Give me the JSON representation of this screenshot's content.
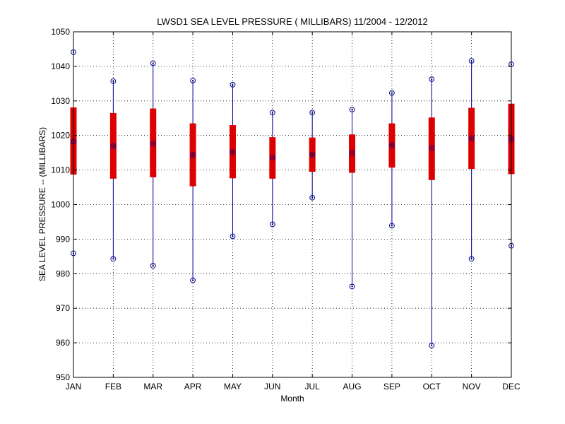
{
  "chart_data": {
    "type": "box",
    "title": "LWSD1  SEA LEVEL PRESSURE ( MILLIBARS) 11/2004 - 12/2012",
    "xlabel": "Month",
    "ylabel": "SEA LEVEL PRESSURE -- (MILLIBARS)",
    "ylim": [
      950,
      1050
    ],
    "yticks": [
      950,
      960,
      970,
      980,
      990,
      1000,
      1010,
      1020,
      1030,
      1040,
      1050
    ],
    "grid": true,
    "categories": [
      "JAN",
      "FEB",
      "MAR",
      "APR",
      "MAY",
      "JUN",
      "JUL",
      "AUG",
      "SEP",
      "OCT",
      "NOV",
      "DEC"
    ],
    "series": [
      {
        "max": [
          1044.1,
          1035.7,
          1040.9,
          1035.9,
          1034.7,
          1026.6,
          1026.6,
          1027.5,
          1032.3,
          1036.3,
          1041.6,
          1040.6
        ],
        "q3": [
          1028.1,
          1026.5,
          1027.8,
          1023.5,
          1023.0,
          1019.5,
          1019.4,
          1020.3,
          1023.5,
          1025.2,
          1028.0,
          1029.2
        ],
        "median": [
          1018.2,
          1016.9,
          1017.6,
          1014.4,
          1015.2,
          1013.6,
          1014.5,
          1014.9,
          1017.2,
          1016.3,
          1019.2,
          1018.9
        ],
        "q1": [
          1008.7,
          1007.5,
          1007.9,
          1005.3,
          1007.6,
          1007.5,
          1009.5,
          1009.2,
          1010.7,
          1007.1,
          1010.3,
          1008.8
        ],
        "min": [
          985.9,
          984.3,
          982.3,
          978.1,
          990.8,
          994.3,
          1002.0,
          976.3,
          993.9,
          959.2,
          984.3,
          988.1
        ]
      }
    ],
    "colors": {
      "box": "#dd0000",
      "whisker": "#00009e",
      "grid": "#000000"
    }
  }
}
